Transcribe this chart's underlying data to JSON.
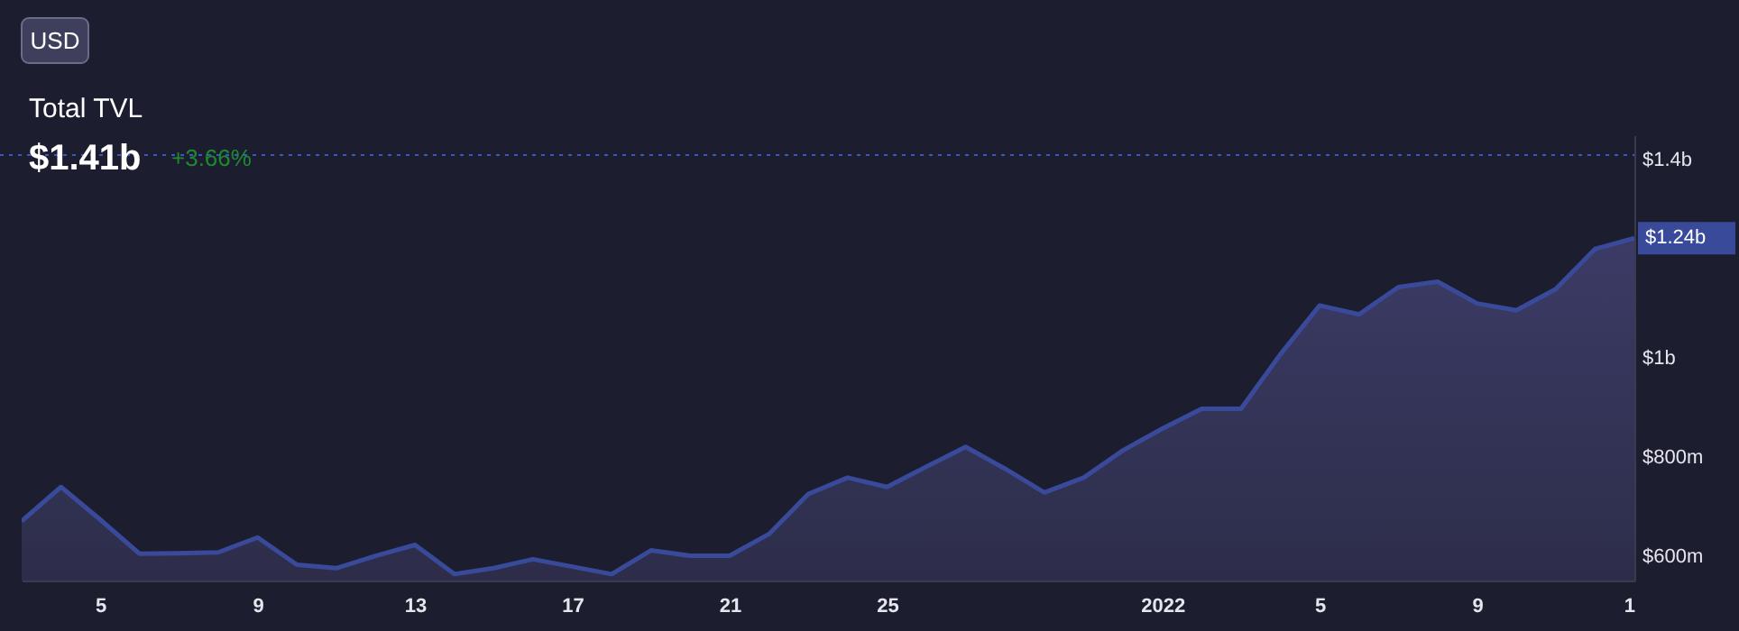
{
  "chart_data": {
    "type": "area",
    "title": "Total TVL",
    "x": [
      "2021-12-03",
      "2021-12-04",
      "2021-12-05",
      "2021-12-06",
      "2021-12-07",
      "2021-12-08",
      "2021-12-09",
      "2021-12-10",
      "2021-12-11",
      "2021-12-12",
      "2021-12-13",
      "2021-12-14",
      "2021-12-15",
      "2021-12-16",
      "2021-12-17",
      "2021-12-18",
      "2021-12-19",
      "2021-12-20",
      "2021-12-21",
      "2021-12-22",
      "2021-12-23",
      "2021-12-24",
      "2021-12-25",
      "2021-12-26",
      "2021-12-27",
      "2021-12-28",
      "2021-12-29",
      "2021-12-30",
      "2021-12-31",
      "2022-01-01",
      "2022-01-02",
      "2022-01-03",
      "2022-01-04",
      "2022-01-05",
      "2022-01-06",
      "2022-01-07",
      "2022-01-08",
      "2022-01-09",
      "2022-01-10",
      "2022-01-11",
      "2022-01-12",
      "2022-01-13"
    ],
    "series": [
      {
        "color": "#3a4a9a",
        "values": [
          670000000,
          739000000,
          673000000,
          604000000,
          605000000,
          607000000,
          637000000,
          582000000,
          575000000,
          600000000,
          622000000,
          563000000,
          575000000,
          593000000,
          578000000,
          563000000,
          611000000,
          600000000,
          600000000,
          644000000,
          725000000,
          758000000,
          739000000,
          780000000,
          820000000,
          776000000,
          728000000,
          758000000,
          813000000,
          857000000,
          897000000,
          897000000,
          1007000000,
          1106000000,
          1088000000,
          1143000000,
          1154000000,
          1110000000,
          1096000000,
          1139000000,
          1220000000,
          1242000000
        ]
      }
    ],
    "xlim": [
      "2021-12-03",
      "2022-01-13"
    ],
    "xticks": [
      {
        "value": "2021-12-05",
        "label": "5"
      },
      {
        "value": "2021-12-09",
        "label": "9"
      },
      {
        "value": "2021-12-13",
        "label": "13"
      },
      {
        "value": "2021-12-17",
        "label": "17"
      },
      {
        "value": "2021-12-21",
        "label": "21"
      },
      {
        "value": "2021-12-25",
        "label": "25"
      },
      {
        "value": "2022-01-01",
        "label": "2022"
      },
      {
        "value": "2022-01-05",
        "label": "5"
      },
      {
        "value": "2022-01-09",
        "label": "9"
      },
      {
        "value": "2022-01-13",
        "label": "1"
      }
    ],
    "ylim": [
      550000000,
      1450000000
    ],
    "yticks": [
      {
        "value": 600000000,
        "label": "$600m"
      },
      {
        "value": 800000000,
        "label": "$800m"
      },
      {
        "value": 1000000000,
        "label": "$1b"
      },
      {
        "value": 1400000000,
        "label": "$1.4b"
      }
    ],
    "ref_lines": [
      {
        "axis": "y",
        "value": 1410000000,
        "color": "#3d55c8",
        "line_style": "dotted"
      }
    ],
    "annotations": [
      "USD",
      "$1.41b",
      "+3.66%",
      {
        "text": "$1.24b",
        "x": "2022-01-13",
        "y": 1242000000
      }
    ],
    "grid": false
  }
}
